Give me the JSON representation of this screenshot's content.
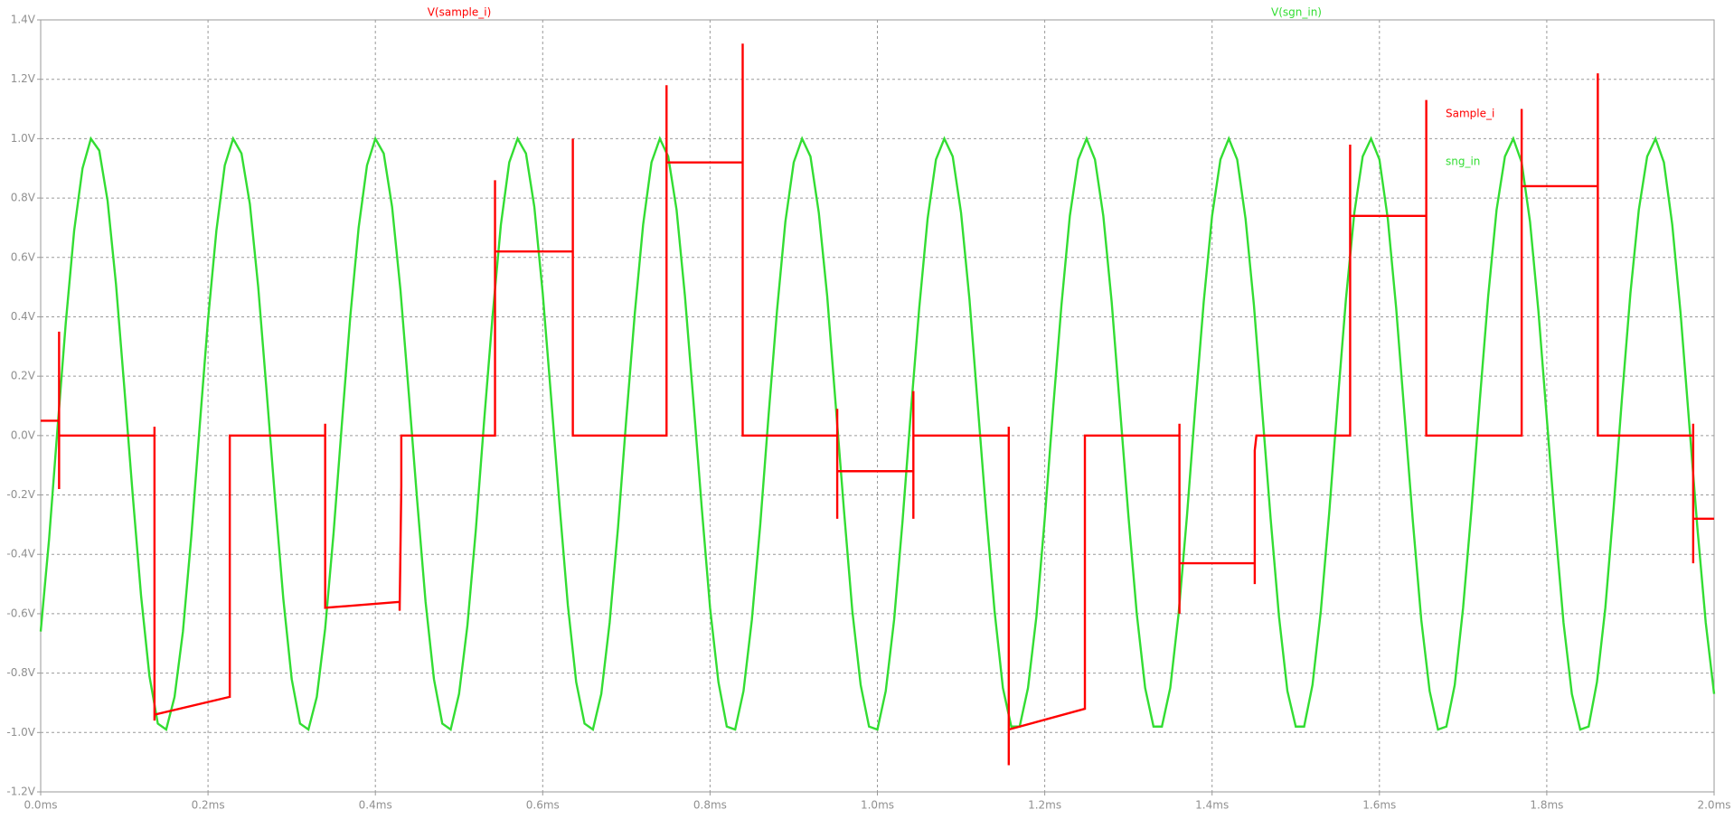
{
  "chart_data": {
    "type": "line",
    "series": [
      {
        "name": "V(sample_i)",
        "color": "#ff0000",
        "x": [
          0,
          0.022,
          0.022,
          0.022,
          0.022,
          0.136,
          0.136,
          0.136,
          0.136,
          0.226,
          0.226,
          0.34,
          0.34,
          0.34,
          0.429,
          0.429,
          0.431,
          0.431,
          0.543,
          0.543,
          0.543,
          0.636,
          0.636,
          0.636,
          0.748,
          0.748,
          0.748,
          0.839,
          0.839,
          0.839,
          0.952,
          0.952,
          0.952,
          0.952,
          1.043,
          1.043,
          1.043,
          1.043,
          1.157,
          1.157,
          1.157,
          1.157,
          1.248,
          1.248,
          1.361,
          1.361,
          1.361,
          1.361,
          1.451,
          1.451,
          1.451,
          1.453,
          1.565,
          1.565,
          1.565,
          1.656,
          1.656,
          1.656,
          1.656,
          1.77,
          1.77,
          1.77,
          1.861,
          1.861,
          1.861,
          1.975,
          1.975,
          1.975,
          1.975,
          2
        ],
        "values": [
          0.05,
          0.05,
          0.35,
          -0.18,
          0,
          0,
          0.03,
          -0.96,
          -0.94,
          -0.88,
          0,
          0,
          0.04,
          -0.58,
          -0.56,
          -0.59,
          -0.17,
          0,
          0,
          0.86,
          0.62,
          0.62,
          1.0,
          0,
          0,
          1.18,
          0.92,
          0.92,
          1.32,
          0,
          0,
          0.09,
          -0.28,
          -0.12,
          -0.12,
          0.15,
          -0.28,
          0,
          0,
          0.03,
          -1.11,
          -0.99,
          -0.92,
          0,
          0,
          0.04,
          -0.6,
          -0.43,
          -0.43,
          -0.5,
          -0.05,
          0,
          0,
          0.98,
          0.74,
          0.74,
          1.13,
          0.27,
          0,
          0,
          1.1,
          0.84,
          0.84,
          1.22,
          0,
          0,
          0.04,
          -0.43,
          -0.28,
          -0.28
        ]
      },
      {
        "name": "V(sgn_in)",
        "color": "#33dd33",
        "x": [
          0,
          0.01,
          0.02,
          0.03,
          0.04,
          0.05,
          0.06,
          0.07,
          0.08,
          0.09,
          0.1,
          0.11,
          0.12,
          0.13,
          0.14,
          0.15,
          0.16,
          0.17,
          0.18,
          0.19,
          0.2,
          0.21,
          0.22,
          0.23,
          0.24,
          0.25,
          0.26,
          0.27,
          0.28,
          0.29,
          0.3,
          0.31,
          0.32,
          0.33,
          0.34,
          0.35,
          0.36,
          0.37,
          0.38,
          0.39,
          0.4,
          0.41,
          0.42,
          0.43,
          0.44,
          0.45,
          0.46,
          0.47,
          0.48,
          0.49,
          0.5,
          0.51,
          0.52,
          0.53,
          0.54,
          0.55,
          0.56,
          0.57,
          0.58,
          0.59,
          0.6,
          0.61,
          0.62,
          0.63,
          0.64,
          0.65,
          0.66,
          0.67,
          0.68,
          0.69,
          0.7,
          0.71,
          0.72,
          0.73,
          0.74,
          0.75,
          0.76,
          0.77,
          0.78,
          0.79,
          0.8,
          0.81,
          0.82,
          0.83,
          0.84,
          0.85,
          0.86,
          0.87,
          0.88,
          0.89,
          0.9,
          0.91,
          0.92,
          0.93,
          0.94,
          0.95,
          0.96,
          0.97,
          0.98,
          0.99,
          1,
          1.01,
          1.02,
          1.03,
          1.04,
          1.05,
          1.06,
          1.07,
          1.08,
          1.09,
          1.1,
          1.11,
          1.12,
          1.13,
          1.14,
          1.15,
          1.16,
          1.17,
          1.18,
          1.19,
          1.2,
          1.21,
          1.22,
          1.23,
          1.24,
          1.25,
          1.26,
          1.27,
          1.28,
          1.29,
          1.3,
          1.31,
          1.32,
          1.33,
          1.34,
          1.35,
          1.36,
          1.37,
          1.38,
          1.39,
          1.4,
          1.41,
          1.42,
          1.43,
          1.44,
          1.45,
          1.46,
          1.47,
          1.48,
          1.49,
          1.5,
          1.51,
          1.52,
          1.53,
          1.54,
          1.55,
          1.56,
          1.57,
          1.58,
          1.59,
          1.6,
          1.61,
          1.62,
          1.63,
          1.64,
          1.65,
          1.66,
          1.67,
          1.68,
          1.69,
          1.7,
          1.71,
          1.72,
          1.73,
          1.74,
          1.75,
          1.76,
          1.77,
          1.78,
          1.79,
          1.8,
          1.81,
          1.82,
          1.83,
          1.84,
          1.85,
          1.86,
          1.87,
          1.88,
          1.89,
          1.9,
          1.91,
          1.92,
          1.93,
          1.94,
          1.95,
          1.96,
          1.97,
          1.98,
          1.99,
          2
        ],
        "values": [
          -0.66,
          -0.35,
          0.02,
          0.38,
          0.69,
          0.9,
          1.0,
          0.96,
          0.79,
          0.51,
          0.16,
          -0.2,
          -0.54,
          -0.81,
          -0.97,
          -0.99,
          -0.88,
          -0.66,
          -0.34,
          0.03,
          0.39,
          0.69,
          0.91,
          1.0,
          0.95,
          0.78,
          0.5,
          0.15,
          -0.21,
          -0.55,
          -0.82,
          -0.97,
          -0.99,
          -0.88,
          -0.65,
          -0.33,
          0.04,
          0.4,
          0.7,
          0.91,
          1.0,
          0.95,
          0.77,
          0.49,
          0.14,
          -0.22,
          -0.56,
          -0.82,
          -0.97,
          -0.99,
          -0.87,
          -0.64,
          -0.32,
          0.05,
          0.4,
          0.71,
          0.92,
          1.0,
          0.95,
          0.77,
          0.48,
          0.13,
          -0.23,
          -0.57,
          -0.83,
          -0.97,
          -0.99,
          -0.87,
          -0.63,
          -0.31,
          0.06,
          0.41,
          0.71,
          0.92,
          1.0,
          0.94,
          0.76,
          0.47,
          0.12,
          -0.24,
          -0.58,
          -0.83,
          -0.98,
          -0.99,
          -0.86,
          -0.62,
          -0.3,
          0.07,
          0.42,
          0.72,
          0.92,
          1.0,
          0.94,
          0.75,
          0.47,
          0.11,
          -0.25,
          -0.59,
          -0.84,
          -0.98,
          -0.99,
          -0.86,
          -0.62,
          -0.29,
          0.08,
          0.43,
          0.73,
          0.93,
          1.0,
          0.94,
          0.75,
          0.46,
          0.1,
          -0.26,
          -0.59,
          -0.85,
          -0.98,
          -0.98,
          -0.85,
          -0.61,
          -0.28,
          0.09,
          0.44,
          0.74,
          0.93,
          1.0,
          0.93,
          0.74,
          0.45,
          0.09,
          -0.27,
          -0.6,
          -0.85,
          -0.98,
          -0.98,
          -0.85,
          -0.6,
          -0.27,
          0.1,
          0.45,
          0.74,
          0.93,
          1.0,
          0.93,
          0.73,
          0.44,
          0.08,
          -0.28,
          -0.61,
          -0.86,
          -0.98,
          -0.98,
          -0.84,
          -0.59,
          -0.26,
          0.11,
          0.46,
          0.75,
          0.94,
          1.0,
          0.93,
          0.73,
          0.43,
          0.07,
          -0.29,
          -0.62,
          -0.86,
          -0.99,
          -0.98,
          -0.84,
          -0.58,
          -0.25,
          0.12,
          0.47,
          0.76,
          0.94,
          1.0,
          0.92,
          0.72,
          0.42,
          0.06,
          -0.3,
          -0.63,
          -0.87,
          -0.99,
          -0.98,
          -0.83,
          -0.58,
          -0.24,
          0.13,
          0.48,
          0.76,
          0.94,
          1.0,
          0.92,
          0.71,
          0.41,
          0.05,
          -0.31,
          -0.63,
          -0.87
        ]
      }
    ],
    "xlim": [
      0,
      2
    ],
    "ylim": [
      -1.2,
      1.4
    ],
    "xticks": [
      {
        "value": 0,
        "label": "0.0ms"
      },
      {
        "value": 0.2,
        "label": "0.2ms"
      },
      {
        "value": 0.4,
        "label": "0.4ms"
      },
      {
        "value": 0.6,
        "label": "0.6ms"
      },
      {
        "value": 0.8,
        "label": "0.8ms"
      },
      {
        "value": 1.0,
        "label": "1.0ms"
      },
      {
        "value": 1.2,
        "label": "1.2ms"
      },
      {
        "value": 1.4,
        "label": "1.4ms"
      },
      {
        "value": 1.6,
        "label": "1.6ms"
      },
      {
        "value": 1.8,
        "label": "1.8ms"
      },
      {
        "value": 2.0,
        "label": "2.0ms"
      }
    ],
    "yticks": [
      {
        "value": 1.4,
        "label": "1.4V"
      },
      {
        "value": 1.2,
        "label": "1.2V"
      },
      {
        "value": 1.0,
        "label": "1.0V"
      },
      {
        "value": 0.8,
        "label": "0.8V"
      },
      {
        "value": 0.6,
        "label": "0.6V"
      },
      {
        "value": 0.4,
        "label": "0.4V"
      },
      {
        "value": 0.2,
        "label": "0.2V"
      },
      {
        "value": 0,
        "label": "0.0V"
      },
      {
        "value": -0.2,
        "label": "-0.2V"
      },
      {
        "value": -0.4,
        "label": "-0.4V"
      },
      {
        "value": -0.6,
        "label": "-0.6V"
      },
      {
        "value": -0.8,
        "label": "-0.8V"
      },
      {
        "value": -1.0,
        "label": "-1.0V"
      },
      {
        "value": -1.2,
        "label": "-1.2V"
      }
    ],
    "grid": true,
    "annotations": [
      {
        "text": "Sample_i",
        "color": "#ff0000"
      },
      {
        "text": "sng_in",
        "color": "#33dd33"
      }
    ]
  }
}
